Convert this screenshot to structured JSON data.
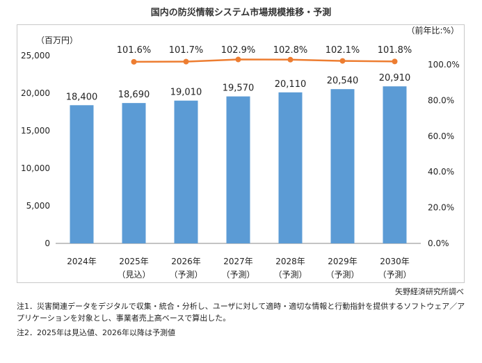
{
  "chart_data": {
    "type": "bar+line",
    "title": "国内の防災情報システム市場規模推移・予測",
    "y_left_unit": "（百万円）",
    "y_right_unit": "（前年比:%）",
    "y_left_lim": [
      0,
      25000
    ],
    "y_left_ticks": [
      "0",
      "5,000",
      "10,000",
      "15,000",
      "20,000",
      "25,000"
    ],
    "y_right_lim": [
      0,
      100
    ],
    "y_right_ticks": [
      "0.0%",
      "20.0%",
      "40.0%",
      "60.0%",
      "80.0%",
      "100.0%"
    ],
    "categories": [
      {
        "year": "2024年",
        "sub": ""
      },
      {
        "year": "2025年",
        "sub": "（見込）"
      },
      {
        "year": "2026年",
        "sub": "（予測）"
      },
      {
        "year": "2027年",
        "sub": "（予測）"
      },
      {
        "year": "2028年",
        "sub": "（予測）"
      },
      {
        "year": "2029年",
        "sub": "（予測）"
      },
      {
        "year": "2030年",
        "sub": "（予測）"
      }
    ],
    "series": [
      {
        "name": "市場規模",
        "kind": "bar",
        "axis": "left",
        "color": "#5b9bd5",
        "values": [
          18400,
          18690,
          19010,
          19570,
          20110,
          20540,
          20910
        ],
        "labels": [
          "18,400",
          "18,690",
          "19,010",
          "19,570",
          "20,110",
          "20,540",
          "20,910"
        ]
      },
      {
        "name": "前年比",
        "kind": "line",
        "axis": "right",
        "color": "#ed7d31",
        "values": [
          null,
          101.6,
          101.7,
          102.9,
          102.8,
          102.1,
          101.8
        ],
        "labels": [
          "",
          "101.6%",
          "101.7%",
          "102.9%",
          "102.8%",
          "102.1%",
          "101.8%"
        ]
      }
    ],
    "grid": false,
    "legend": "none"
  },
  "source": "矢野経済研究所調べ",
  "notes": {
    "note1": "注1．災害関連データをデジタルで収集・統合・分析し、ユーザに対して適時・適切な情報と行動指針を提供するソフトウェア／アプリケーションを対象とし、事業者売上高ベースで算出した。",
    "note2": "注2．2025年は見込値、2026年以降は予測値"
  }
}
